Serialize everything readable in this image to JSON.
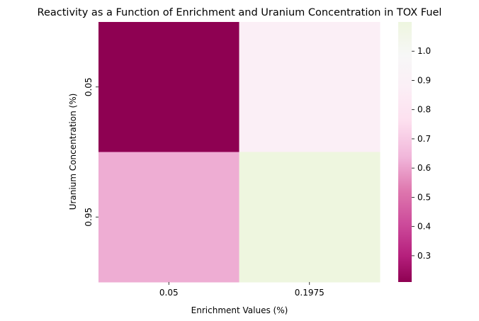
{
  "chart_data": {
    "type": "heatmap",
    "title": "Reactivity as a Function of Enrichment and Uranium Concentration in TOX Fuel",
    "xlabel": "Enrichment Values (%)",
    "ylabel": "Uranium Concentration (%)",
    "x_categories": [
      "0.05",
      "0.1975"
    ],
    "y_categories": [
      "0.05",
      "0.95"
    ],
    "values": [
      [
        0.21,
        0.88
      ],
      [
        0.62,
        1.1
      ]
    ],
    "colormap": "PiYG",
    "colorbar": {
      "vmin": 0.21,
      "vmax": 1.1,
      "ticks": [
        0.3,
        0.4,
        0.5,
        0.6,
        0.7,
        0.8,
        0.9,
        1.0
      ],
      "tick_labels": [
        "0.3",
        "0.4",
        "0.5",
        "0.6",
        "0.7",
        "0.8",
        "0.9",
        "1.0"
      ]
    }
  }
}
